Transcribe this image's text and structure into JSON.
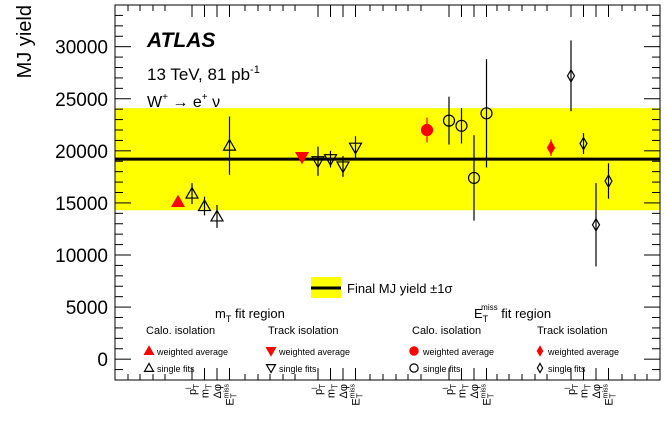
{
  "chart_data": {
    "type": "scatter",
    "ylabel": "MJ yield",
    "ylim": [
      -2000,
      34000
    ],
    "yticks": [
      0,
      5000,
      10000,
      15000,
      20000,
      25000,
      30000
    ],
    "experiment": "ATLAS",
    "energy_label": "13 TeV, 81 pb",
    "energy_sup": "-1",
    "channel": {
      "w": "W",
      "w_sup": "+",
      "arrow": "→",
      "e": "e",
      "e_sup": "+",
      "nu": "ν"
    },
    "band": {
      "center": 19200,
      "low": 14300,
      "high": 24100,
      "color": "#ffff00",
      "legend": "Final MJ yield ±1σ"
    },
    "regions": [
      {
        "title_main": "m",
        "title_sub": "T",
        "title_rest": " fit region"
      },
      {
        "title_main": "E",
        "title_sub": "T",
        "title_sup": "miss",
        "title_rest": " fit region"
      }
    ],
    "isolation_labels": [
      "Calo. isolation",
      "Track isolation",
      "Calo. isolation",
      "Track isolation"
    ],
    "legend_entries": [
      {
        "marker": "triangle-up-filled",
        "label": "weighted average"
      },
      {
        "marker": "triangle-up-open",
        "label": "single fits"
      },
      {
        "marker": "triangle-down-filled",
        "label": "weighted average"
      },
      {
        "marker": "triangle-down-open",
        "label": "single fits"
      },
      {
        "marker": "circle-filled",
        "label": "weighted average"
      },
      {
        "marker": "circle-open",
        "label": "single fits"
      },
      {
        "marker": "diamond-filled",
        "label": "weighted average"
      },
      {
        "marker": "diamond-open",
        "label": "single fits"
      }
    ],
    "x_tick_labels": [
      {
        "main": "p",
        "sub": "T",
        "sup": "l"
      },
      {
        "main": "m",
        "sub": "T",
        "sup": ""
      },
      {
        "main": "Δφ",
        "sub": "",
        "sup": ""
      },
      {
        "main": "E",
        "sub": "T",
        "sup": "miss"
      }
    ],
    "groups": [
      {
        "name": "Calo. isolation, mT fit region",
        "weighted_average": {
          "y": 15100,
          "err": 400,
          "marker": "triangle-up-filled",
          "color": "#ff0000"
        },
        "single_fits": [
          {
            "var": "pT",
            "y": 15900,
            "err": 1000
          },
          {
            "var": "mT",
            "y": 14700,
            "err": 900
          },
          {
            "var": "dphi",
            "y": 13700,
            "err": 1100
          },
          {
            "var": "ETmiss",
            "y": 20500,
            "err": 2800
          }
        ],
        "single_marker": "triangle-up-open"
      },
      {
        "name": "Track isolation, mT fit region",
        "weighted_average": {
          "y": 19400,
          "err": 400,
          "marker": "triangle-down-filled",
          "color": "#ff0000"
        },
        "single_fits": [
          {
            "var": "pT",
            "y": 19000,
            "err": 1400
          },
          {
            "var": "mT",
            "y": 19200,
            "err": 800
          },
          {
            "var": "dphi",
            "y": 18500,
            "err": 1000
          },
          {
            "var": "ETmiss",
            "y": 20300,
            "err": 1100
          }
        ],
        "single_marker": "triangle-down-open"
      },
      {
        "name": "Calo. isolation, ETmiss fit region",
        "weighted_average": {
          "y": 22000,
          "err": 1200,
          "marker": "circle-filled",
          "color": "#ff0000"
        },
        "single_fits": [
          {
            "var": "pT",
            "y": 22900,
            "err": 2300
          },
          {
            "var": "mT",
            "y": 22400,
            "err": 1700
          },
          {
            "var": "dphi",
            "y": 17400,
            "err": 4100
          },
          {
            "var": "ETmiss",
            "y": 23600,
            "err": 5200
          }
        ],
        "single_marker": "circle-open"
      },
      {
        "name": "Track isolation, ETmiss fit region",
        "weighted_average": {
          "y": 20300,
          "err": 800,
          "marker": "diamond-filled",
          "color": "#ff0000"
        },
        "single_fits": [
          {
            "var": "pT",
            "y": 27200,
            "err": 3400
          },
          {
            "var": "mT",
            "y": 20700,
            "err": 1000
          },
          {
            "var": "dphi",
            "y": 12900,
            "err": 4000
          },
          {
            "var": "ETmiss",
            "y": 17100,
            "err": 1700
          }
        ],
        "single_marker": "diamond-open"
      }
    ]
  }
}
